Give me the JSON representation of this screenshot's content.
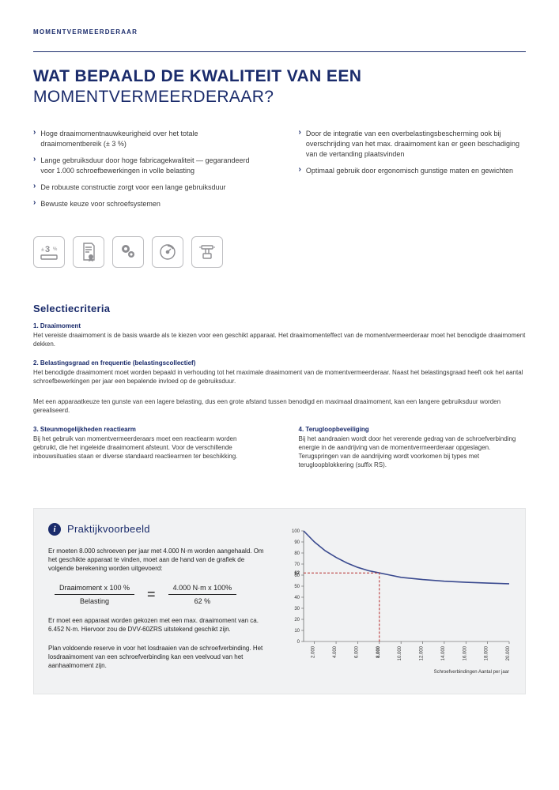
{
  "breadcrumb": "MOMENTVERMEERDERAAR",
  "title_bold": "WAT BEPAALD DE KWALITEIT VAN EEN",
  "title_light": "MOMENTVERMEERDERAAR?",
  "bullets": {
    "left": [
      "Hoge draaimomentnauwkeurigheid over het totale draaimomentbereik (± 3 %)",
      "Lange gebruiksduur door hoge fabricagekwaliteit — gegarandeerd voor 1.000 schroefbewerkingen in volle belasting",
      "De robuuste constructie zorgt voor een lange gebruiksduur",
      "Bewuste keuze voor schroefsystemen"
    ],
    "right": [
      "Door de integratie van een overbelastingsbescherming ook bij overschrijding van het max. draaimoment kan er geen beschadiging van de vertanding plaatsvinden",
      "Optimaal gebruik door ergonomisch gunstige maten en gewichten"
    ]
  },
  "icons": [
    {
      "name": "accuracy-3pct-icon"
    },
    {
      "name": "certificate-icon"
    },
    {
      "name": "gears-icon"
    },
    {
      "name": "overload-protection-icon"
    },
    {
      "name": "ergonomic-icon"
    }
  ],
  "selection": {
    "heading": "Selectiecriteria",
    "crit1_label": "1. Draaimoment",
    "crit1_body": "Het vereiste draaimoment is de basis waarde als te kiezen voor een geschikt apparaat. Het draaimomenteffect van de momentvermeerderaar moet het benodigde draaimoment dekken.",
    "crit2_label": "2. Belastingsgraad en frequentie (belastingscollectief)",
    "crit2a": "Het benodigde draaimoment moet worden bepaald in verhouding tot het maximale draaimoment van de momentvermeerderaar. Naast het belastingsgraad heeft ook het aantal schroefbewerkingen per jaar een bepalende invloed op de gebruiksduur.",
    "crit2b": "Met een apparaatkeuze ten gunste van een lagere belasting, dus een grote afstand tussen benodigd en maximaal draaimoment, kan een langere gebruiksduur worden gerealiseerd.",
    "crit3_label": "3. Steunmogelijkheden reactiearm",
    "crit3_body": "Bij het gebruik van momentvermeerderaars moet een reactiearm worden gebruikt, die het ingeleide draaimoment afsteunt. Voor de verschillende inbouwsituaties staan er diverse standaard reactiearmen ter beschikking.",
    "crit4_label": "4. Terugloopbeveiliging",
    "crit4_body": "Bij het aandraaien wordt door het vererende gedrag van de schroefverbinding energie in de aandrijving van de momentvermeerderaar opgeslagen. Terugspringen van de aandrijving wordt voorkomen bij types met terugloopblokkering (suffix RS)."
  },
  "example": {
    "title": "Praktijkvoorbeeld",
    "p1": "Er moeten 8.000 schroeven per jaar met 4.000 N·m worden aangehaald. Om het geschikte apparaat te vinden, moet aan de hand van de grafiek de volgende berekening worden uitgevoerd:",
    "frac_top_left": "Draaimoment x 100 %",
    "frac_bot_left": "Belasting",
    "frac_top_right": "4.000 N·m x 100%",
    "frac_bot_right": "62 %",
    "p2": "Er moet een apparaat worden gekozen met een max. draaimoment van ca. 6.452 N·m. Hiervoor zou de DVV-60ZRS uitstekend geschikt zijn.",
    "p3": "Plan voldoende reserve in voor het losdraaien van de schroefverbinding. Het losdraaimoment van een schroefverbinding kan een veelvoud van het aanhaalmoment zijn."
  },
  "chart": {
    "y_ticks": [
      0,
      10,
      20,
      30,
      40,
      50,
      60,
      70,
      80,
      90,
      100
    ],
    "x_ticks_labels": [
      "2.000",
      "4.000",
      "6.000",
      "8.000",
      "10.000",
      "12.000",
      "14.000",
      "16.000",
      "18.000",
      "20.000"
    ],
    "x_ticks_values": [
      2000,
      4000,
      6000,
      8000,
      10000,
      12000,
      14000,
      16000,
      18000,
      20000
    ],
    "x_domain": [
      1000,
      20000
    ],
    "y_domain": [
      0,
      100
    ],
    "highlight_x": 8000,
    "highlight_y": 62,
    "highlight_label": "62",
    "highlight_x_label": "8.000",
    "xlabel": "Schroefverbindingen Aantal per jaar",
    "curve_points": [
      [
        1000,
        100
      ],
      [
        2000,
        90
      ],
      [
        3000,
        82
      ],
      [
        4000,
        76
      ],
      [
        5000,
        71
      ],
      [
        6000,
        67
      ],
      [
        7000,
        64
      ],
      [
        8000,
        62
      ],
      [
        9000,
        60
      ],
      [
        10000,
        58
      ],
      [
        12000,
        56
      ],
      [
        14000,
        54.5
      ],
      [
        16000,
        53.5
      ],
      [
        18000,
        52.8
      ],
      [
        20000,
        52.2
      ]
    ],
    "colors": {
      "curve": "#3a4a8f",
      "dash": "#b52a2a",
      "axis": "#444444",
      "bg": "#f1f2f3"
    }
  }
}
